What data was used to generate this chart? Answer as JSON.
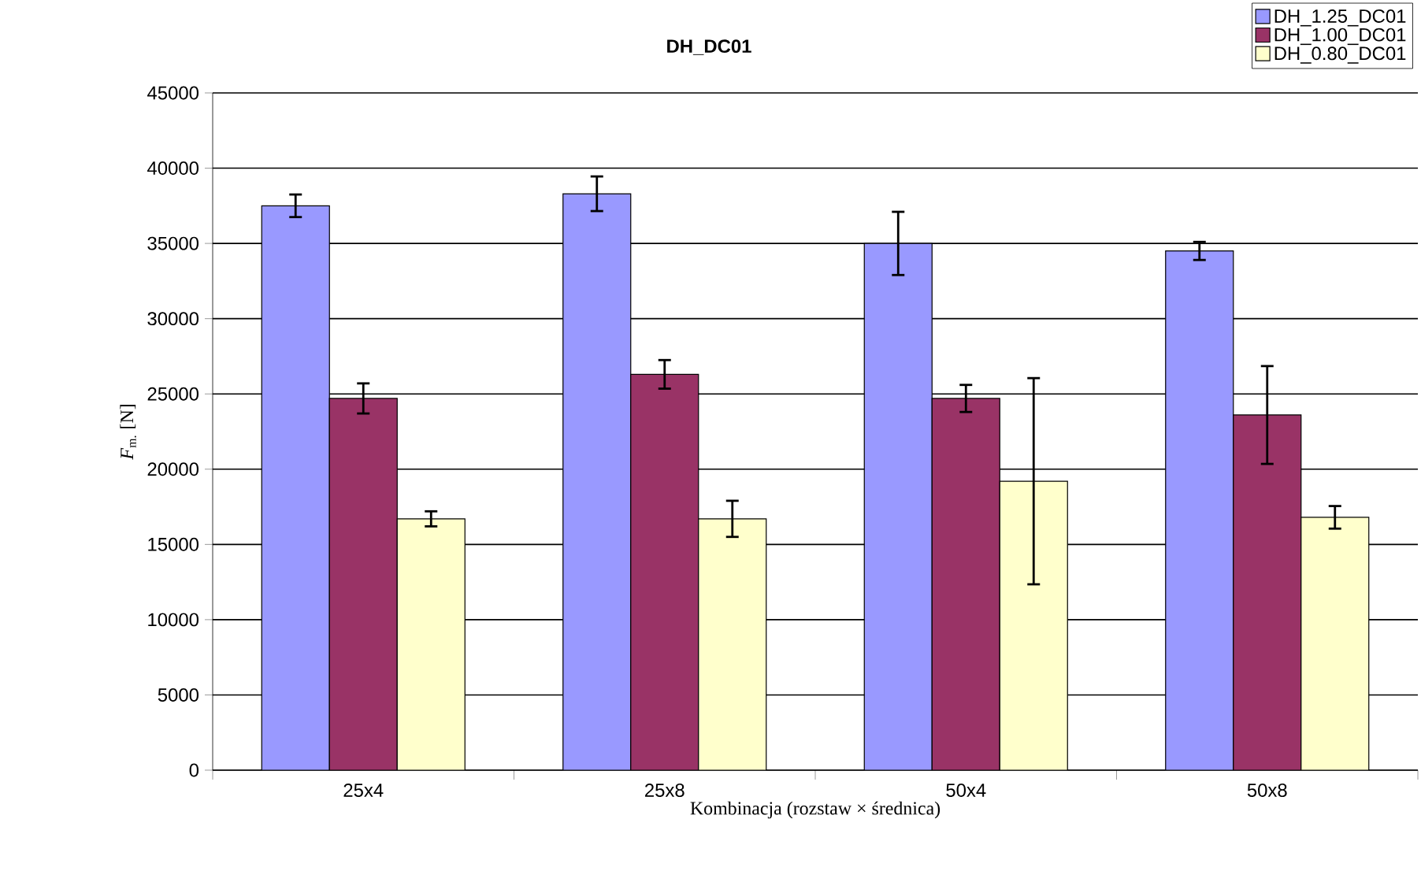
{
  "chart_data": {
    "type": "bar",
    "title": "DH_DC01",
    "xlabel": "Kombinacja (rozstaw × średnica)",
    "ylabel": "*F*$_{m.}$ [N]",
    "categories": [
      "25x4",
      "25x8",
      "50x4",
      "50x8"
    ],
    "series": [
      {
        "name": "DH_1.25_DC01",
        "color": "#9999ff",
        "values": [
          37500,
          38300,
          35000,
          34500
        ],
        "errors": [
          750,
          1150,
          2100,
          600
        ]
      },
      {
        "name": "DH_1.00_DC01",
        "color": "#993366",
        "values": [
          24700,
          26300,
          24700,
          23600
        ],
        "errors": [
          1000,
          950,
          900,
          3250
        ]
      },
      {
        "name": "DH_0.80_DC01",
        "color": "#ffffcc",
        "values": [
          16700,
          16700,
          19200,
          16800
        ],
        "errors": [
          500,
          1200,
          6850,
          750
        ]
      }
    ],
    "ylim": [
      0,
      45000
    ],
    "yticks": [
      0,
      5000,
      10000,
      15000,
      20000,
      25000,
      30000,
      35000,
      40000,
      45000
    ],
    "grid": "y",
    "legend": "top right"
  }
}
